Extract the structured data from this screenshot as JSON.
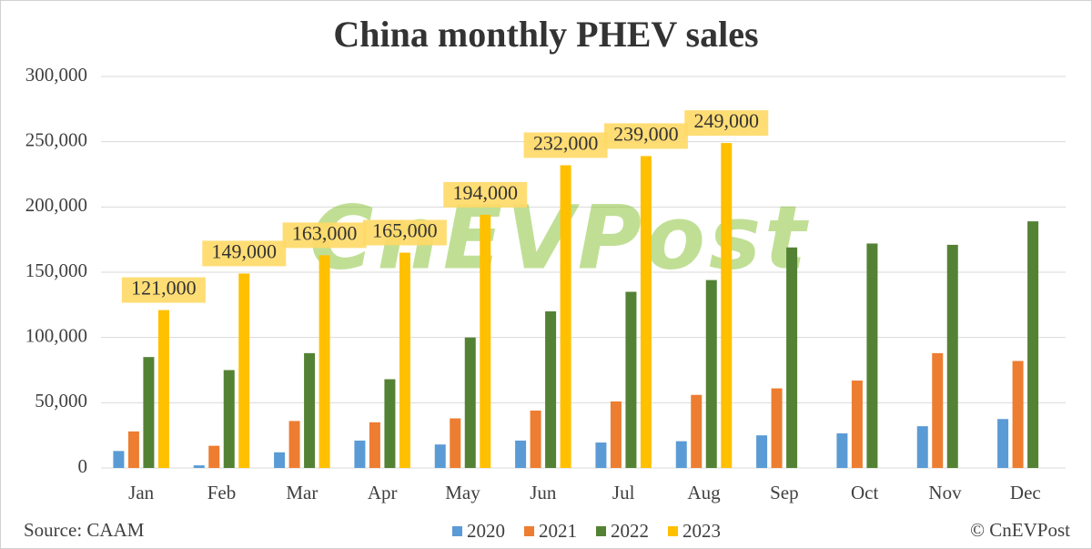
{
  "chart_data": {
    "type": "bar",
    "title": "China monthly PHEV sales",
    "categories": [
      "Jan",
      "Feb",
      "Mar",
      "Apr",
      "May",
      "Jun",
      "Jul",
      "Aug",
      "Sep",
      "Oct",
      "Nov",
      "Dec"
    ],
    "series": [
      {
        "name": "2020",
        "color": "#5b9bd5",
        "values": [
          13000,
          2000,
          12000,
          21000,
          18000,
          21000,
          19500,
          20500,
          25000,
          26500,
          32000,
          37500
        ]
      },
      {
        "name": "2021",
        "color": "#ed7d31",
        "values": [
          28000,
          17000,
          36000,
          35000,
          38000,
          44000,
          51000,
          56000,
          61000,
          67000,
          88000,
          82000
        ]
      },
      {
        "name": "2022",
        "color": "#548235",
        "values": [
          85000,
          75000,
          88000,
          68000,
          100000,
          120000,
          135000,
          144000,
          169000,
          172000,
          171000,
          189000
        ]
      },
      {
        "name": "2023",
        "color": "#ffc000",
        "values": [
          121000,
          149000,
          163000,
          165000,
          194000,
          232000,
          239000,
          249000,
          null,
          null,
          null,
          null
        ],
        "value_labels": [
          "121,000",
          "149,000",
          "163,000",
          "165,000",
          "194,000",
          "232,000",
          "239,000",
          "249,000",
          null,
          null,
          null,
          null
        ]
      }
    ],
    "ylim": [
      0,
      300000
    ],
    "yticks": [
      {
        "value": 0,
        "label": "0"
      },
      {
        "value": 50000,
        "label": "50,000"
      },
      {
        "value": 100000,
        "label": "100,000"
      },
      {
        "value": 150000,
        "label": "150,000"
      },
      {
        "value": 200000,
        "label": "200,000"
      },
      {
        "value": 250000,
        "label": "250,000"
      },
      {
        "value": 300000,
        "label": "300,000"
      }
    ],
    "grid": true,
    "legend": "bottom",
    "source": "Source: CAAM",
    "credit": "© CnEVPost",
    "watermark": "CnEVPost"
  }
}
